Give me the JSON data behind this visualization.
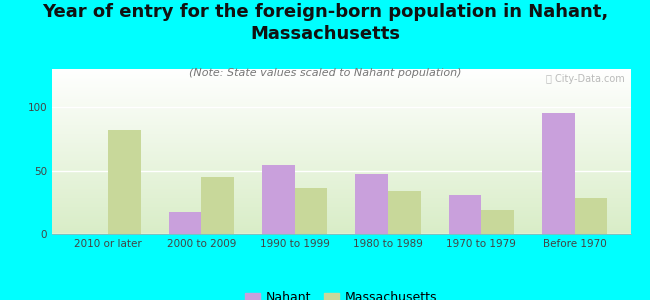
{
  "title": "Year of entry for the foreign-born population in Nahant,\nMassachusetts",
  "subtitle": "(Note: State values scaled to Nahant population)",
  "categories": [
    "2010 or later",
    "2000 to 2009",
    "1990 to 1999",
    "1980 to 1989",
    "1970 to 1979",
    "Before 1970"
  ],
  "nahant_values": [
    0,
    17,
    54,
    47,
    31,
    95
  ],
  "massachusetts_values": [
    82,
    45,
    36,
    34,
    19,
    28
  ],
  "nahant_color": "#c9a0dc",
  "massachusetts_color": "#c8d89a",
  "background_color": "#00ffff",
  "bar_width": 0.35,
  "ylim": [
    0,
    130
  ],
  "yticks": [
    0,
    50,
    100
  ],
  "legend_nahant": "Nahant",
  "legend_massachusetts": "Massachusetts",
  "title_fontsize": 13,
  "subtitle_fontsize": 8,
  "tick_fontsize": 7.5,
  "legend_fontsize": 9
}
